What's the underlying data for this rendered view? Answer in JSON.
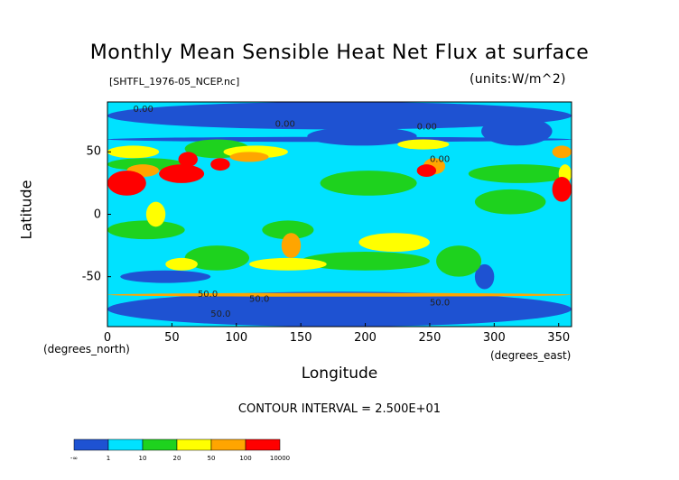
{
  "header": {
    "title": "Monthly Mean Sensible Heat Net Flux at surface",
    "file_label": "[SHTFL_1976-05_NCEP.nc]",
    "units_label": "(units:W/m^2)"
  },
  "footer": {
    "contour_interval": "CONTOUR INTERVAL = 2.500E+01"
  },
  "chart_data": {
    "type": "heatmap",
    "title": "Monthly Mean Sensible Heat Net Flux at surface",
    "xlabel": "Longitude",
    "ylabel": "Latitude",
    "x_unit_label": "(degrees_east)",
    "y_unit_label": "(degrees_north)",
    "xlim": [
      0,
      360
    ],
    "ylim": [
      -90,
      90
    ],
    "x_ticks": [
      0,
      50,
      100,
      150,
      200,
      250,
      300,
      350
    ],
    "y_ticks": [
      50,
      0,
      -50
    ],
    "contour_labels": [
      "0.00",
      "0.00",
      "0.00",
      "0.00",
      "50.0",
      "50.0",
      "50.0",
      "50.0"
    ],
    "colorbar": {
      "colors": [
        "#1e52d2",
        "#00e2ff",
        "#1ed21e",
        "#ffff00",
        "#ffa500",
        "#ff0000"
      ],
      "tick_labels": [
        "-∞",
        "1",
        "10",
        "20",
        "50",
        "100",
        "10000"
      ]
    }
  }
}
